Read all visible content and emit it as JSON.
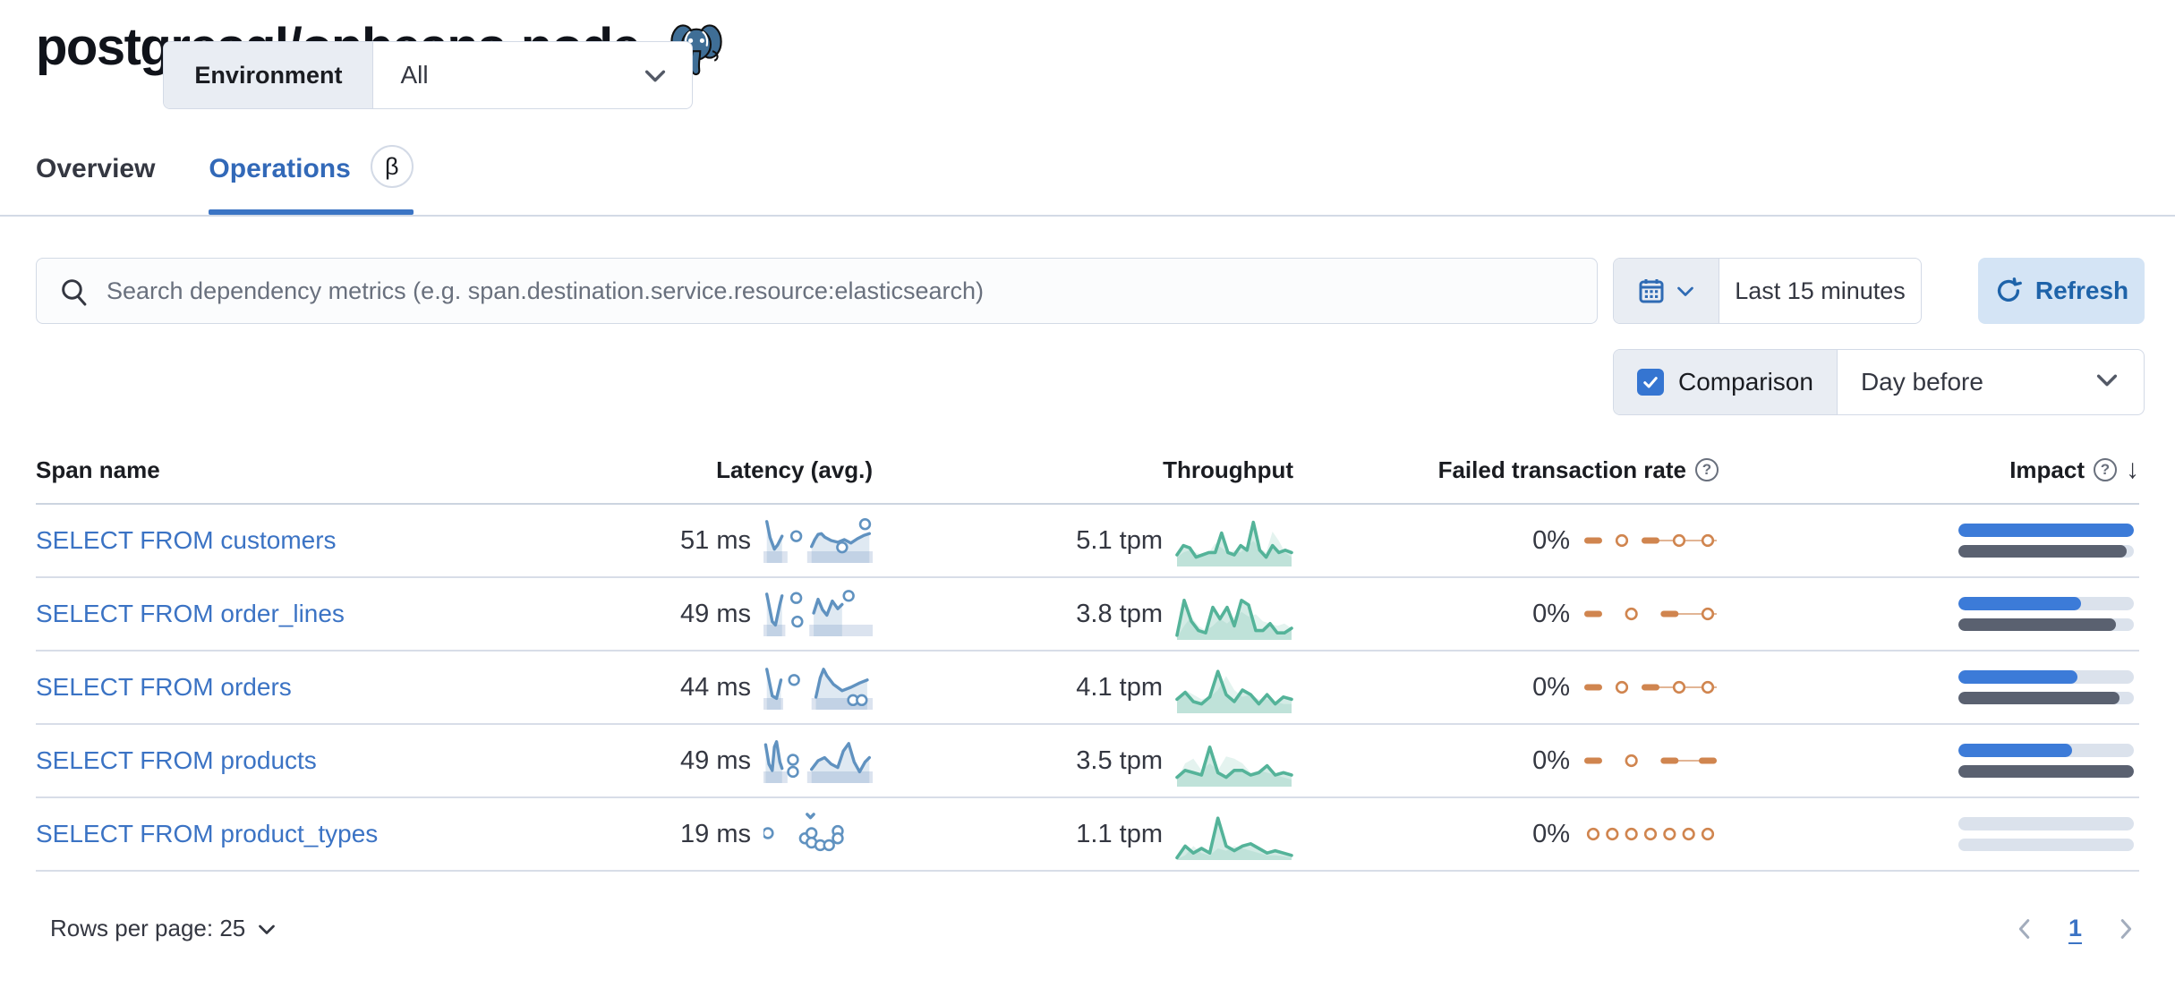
{
  "header": {
    "title": "postgresql/opbeans-node",
    "environment_label": "Environment",
    "environment_value": "All"
  },
  "tabs": {
    "overview": "Overview",
    "operations": "Operations",
    "beta": "β"
  },
  "toolbar": {
    "search_placeholder": "Search dependency metrics (e.g. span.destination.service.resource:elasticsearch)",
    "time_range": "Last 15 minutes",
    "refresh_label": "Refresh",
    "comparison_label": "Comparison",
    "comparison_checked": true,
    "comparison_value": "Day before"
  },
  "table": {
    "headers": {
      "span": "Span name",
      "latency": "Latency (avg.)",
      "throughput": "Throughput",
      "failed": "Failed transaction rate",
      "impact": "Impact"
    },
    "rows": [
      {
        "name": "SELECT FROM customers",
        "latency": "51 ms",
        "throughput": "5.1 tpm",
        "failed_rate": "0%",
        "latency_spark": {
          "bands": [
            [
              0.0,
              0.22
            ],
            [
              0.4,
              1.0
            ]
          ],
          "segments": [
            [
              [
                0.03,
                0.08
              ],
              [
                0.06,
                0.45
              ],
              [
                0.1,
                0.72
              ],
              [
                0.13,
                0.62
              ],
              [
                0.17,
                0.42
              ]
            ],
            [
              [
                0.44,
                0.66
              ],
              [
                0.47,
                0.5
              ],
              [
                0.5,
                0.38
              ],
              [
                0.53,
                0.36
              ],
              [
                0.56,
                0.44
              ],
              [
                0.62,
                0.52
              ],
              [
                0.68,
                0.56
              ],
              [
                0.74,
                0.5
              ],
              [
                0.8,
                0.58
              ],
              [
                0.86,
                0.48
              ],
              [
                0.92,
                0.4
              ],
              [
                0.97,
                0.36
              ]
            ]
          ],
          "dots": [
            [
              0.3,
              0.42
            ],
            [
              0.72,
              0.68
            ],
            [
              0.93,
              0.14
            ]
          ]
        },
        "throughput_spark": {
          "current": [
            0.25,
            0.45,
            0.4,
            0.2,
            0.25,
            0.3,
            0.3,
            0.72,
            0.3,
            0.25,
            0.45,
            0.35,
            0.95,
            0.35,
            0.2,
            0.45,
            0.3,
            0.35,
            0.3
          ],
          "previous": [
            0.2,
            0.3,
            0.35,
            0.3,
            0.25,
            0.3,
            0.5,
            0.4,
            0.3,
            0.35,
            0.3,
            0.45,
            0.55,
            0.4,
            0.3,
            0.75,
            0.55,
            0.3,
            0.2
          ]
        },
        "failed_spark": {
          "pattern": [
            "dash",
            "dot",
            "dash",
            "dot",
            "dot"
          ],
          "link": [
            2,
            4
          ]
        },
        "impact": {
          "current": 1.0,
          "previous": 0.96
        }
      },
      {
        "name": "SELECT FROM order_lines",
        "latency": "49 ms",
        "throughput": "3.8 tpm",
        "failed_rate": "0%",
        "latency_spark": {
          "bands": [
            [
              0.0,
              0.2
            ],
            [
              0.42,
              1.0
            ]
          ],
          "segments": [
            [
              [
                0.03,
                0.06
              ],
              [
                0.08,
                0.7
              ],
              [
                0.11,
                0.78
              ],
              [
                0.15,
                0.3
              ],
              [
                0.17,
                0.1
              ]
            ],
            [
              [
                0.46,
                0.5
              ],
              [
                0.5,
                0.18
              ],
              [
                0.54,
                0.42
              ],
              [
                0.58,
                0.55
              ],
              [
                0.63,
                0.22
              ],
              [
                0.68,
                0.4
              ],
              [
                0.72,
                0.3
              ]
            ]
          ],
          "dots": [
            [
              0.3,
              0.15
            ],
            [
              0.31,
              0.7
            ],
            [
              0.78,
              0.1
            ]
          ]
        },
        "throughput_spark": {
          "current": [
            0.1,
            0.85,
            0.4,
            0.2,
            0.15,
            0.7,
            0.45,
            0.7,
            0.3,
            0.85,
            0.75,
            0.2,
            0.2,
            0.35,
            0.15,
            0.15,
            0.25
          ],
          "previous": [
            0.05,
            0.3,
            0.5,
            0.3,
            0.2,
            0.3,
            0.45,
            0.35,
            0.5,
            0.6,
            0.5,
            0.55,
            0.4,
            0.35,
            0.3,
            0.35,
            0.25
          ]
        },
        "failed_spark": {
          "pattern": [
            "dash",
            "dot",
            "dash",
            "dot"
          ],
          "link": [
            2,
            3
          ]
        },
        "impact": {
          "current": 0.7,
          "previous": 0.9
        }
      },
      {
        "name": "SELECT FROM orders",
        "latency": "44 ms",
        "throughput": "4.1 tpm",
        "failed_rate": "0%",
        "latency_spark": {
          "bands": [
            [
              0.0,
              0.18
            ],
            [
              0.44,
              1.0
            ]
          ],
          "segments": [
            [
              [
                0.03,
                0.1
              ],
              [
                0.08,
                0.72
              ],
              [
                0.12,
                0.78
              ],
              [
                0.16,
                0.35
              ]
            ],
            [
              [
                0.48,
                0.75
              ],
              [
                0.52,
                0.3
              ],
              [
                0.55,
                0.1
              ],
              [
                0.58,
                0.25
              ],
              [
                0.64,
                0.45
              ],
              [
                0.72,
                0.6
              ],
              [
                0.8,
                0.52
              ],
              [
                0.88,
                0.42
              ],
              [
                0.95,
                0.35
              ]
            ]
          ],
          "dots": [
            [
              0.28,
              0.35
            ],
            [
              0.82,
              0.82
            ],
            [
              0.9,
              0.82
            ]
          ]
        },
        "throughput_spark": {
          "current": [
            0.3,
            0.45,
            0.25,
            0.2,
            0.35,
            0.9,
            0.4,
            0.25,
            0.5,
            0.4,
            0.2,
            0.4,
            0.2,
            0.35,
            0.3
          ],
          "previous": [
            0.25,
            0.5,
            0.4,
            0.3,
            0.35,
            0.5,
            0.8,
            0.5,
            0.35,
            0.4,
            0.3,
            0.3,
            0.25,
            0.2,
            0.2
          ]
        },
        "failed_spark": {
          "pattern": [
            "dash",
            "dot",
            "dash",
            "dot",
            "dot"
          ],
          "link": [
            2,
            4
          ]
        },
        "impact": {
          "current": 0.68,
          "previous": 0.92
        }
      },
      {
        "name": "SELECT FROM products",
        "latency": "49 ms",
        "throughput": "3.5 tpm",
        "failed_rate": "0%",
        "latency_spark": {
          "bands": [
            [
              0.0,
              0.22
            ],
            [
              0.4,
              1.0
            ]
          ],
          "segments": [
            [
              [
                0.02,
                0.15
              ],
              [
                0.05,
                0.6
              ],
              [
                0.08,
                0.75
              ],
              [
                0.1,
                0.2
              ],
              [
                0.12,
                0.08
              ],
              [
                0.15,
                0.55
              ],
              [
                0.17,
                0.7
              ]
            ],
            [
              [
                0.44,
                0.72
              ],
              [
                0.5,
                0.52
              ],
              [
                0.56,
                0.45
              ],
              [
                0.62,
                0.6
              ],
              [
                0.68,
                0.68
              ],
              [
                0.73,
                0.3
              ],
              [
                0.78,
                0.12
              ],
              [
                0.83,
                0.55
              ],
              [
                0.88,
                0.78
              ],
              [
                0.93,
                0.55
              ],
              [
                0.97,
                0.45
              ]
            ]
          ],
          "dots": [
            [
              0.27,
              0.5
            ],
            [
              0.27,
              0.78
            ]
          ]
        },
        "throughput_spark": {
          "current": [
            0.2,
            0.35,
            0.3,
            0.25,
            0.85,
            0.3,
            0.2,
            0.35,
            0.35,
            0.25,
            0.3,
            0.45,
            0.25,
            0.3,
            0.25
          ],
          "previous": [
            0.15,
            0.5,
            0.6,
            0.35,
            0.5,
            0.35,
            0.65,
            0.6,
            0.5,
            0.3,
            0.35,
            0.3,
            0.25,
            0.2,
            0.15
          ]
        },
        "failed_spark": {
          "pattern": [
            "dash",
            "dot",
            "dash",
            "dash"
          ],
          "link": [
            2,
            3
          ]
        },
        "impact": {
          "current": 0.65,
          "previous": 1.0
        }
      },
      {
        "name": "SELECT FROM product_types",
        "latency": "19 ms",
        "throughput": "1.1 tpm",
        "failed_rate": "0%",
        "latency_spark": {
          "bands": [],
          "segments": [
            [
              [
                0.4,
                0.06
              ],
              [
                0.43,
                0.14
              ],
              [
                0.46,
                0.06
              ]
            ]
          ],
          "dots": [
            [
              0.04,
              0.5
            ],
            [
              0.38,
              0.62
            ],
            [
              0.44,
              0.5
            ],
            [
              0.44,
              0.72
            ],
            [
              0.52,
              0.78
            ],
            [
              0.6,
              0.78
            ],
            [
              0.68,
              0.45
            ],
            [
              0.68,
              0.62
            ]
          ]
        },
        "throughput_spark": {
          "current": [
            0.05,
            0.3,
            0.15,
            0.25,
            0.15,
            0.9,
            0.3,
            0.2,
            0.3,
            0.35,
            0.25,
            0.15,
            0.2,
            0.15,
            0.1
          ],
          "previous": [
            0.02,
            0.1,
            0.3,
            0.15,
            0.1,
            0.25,
            0.2,
            0.3,
            0.25,
            0.2,
            0.15,
            0.1,
            0.1,
            0.08,
            0.05
          ]
        },
        "failed_spark": {
          "pattern": [
            "dot",
            "dot",
            "dot",
            "dot",
            "dot",
            "dot",
            "dot"
          ],
          "link": null
        },
        "impact": {
          "current": 0.0,
          "previous": 0.0
        }
      }
    ]
  },
  "pagination": {
    "rows_per_page_label": "Rows per page: 25",
    "page": "1"
  },
  "colors": {
    "latency_line": "#6092C0",
    "latency_band": "#dbe3ef",
    "throughput_line": "#54B399",
    "failed_rate": "#D0854F",
    "impact_current": "#3C7BD8",
    "impact_previous": "#5A6170",
    "accent_blue": "#3b74c4"
  }
}
